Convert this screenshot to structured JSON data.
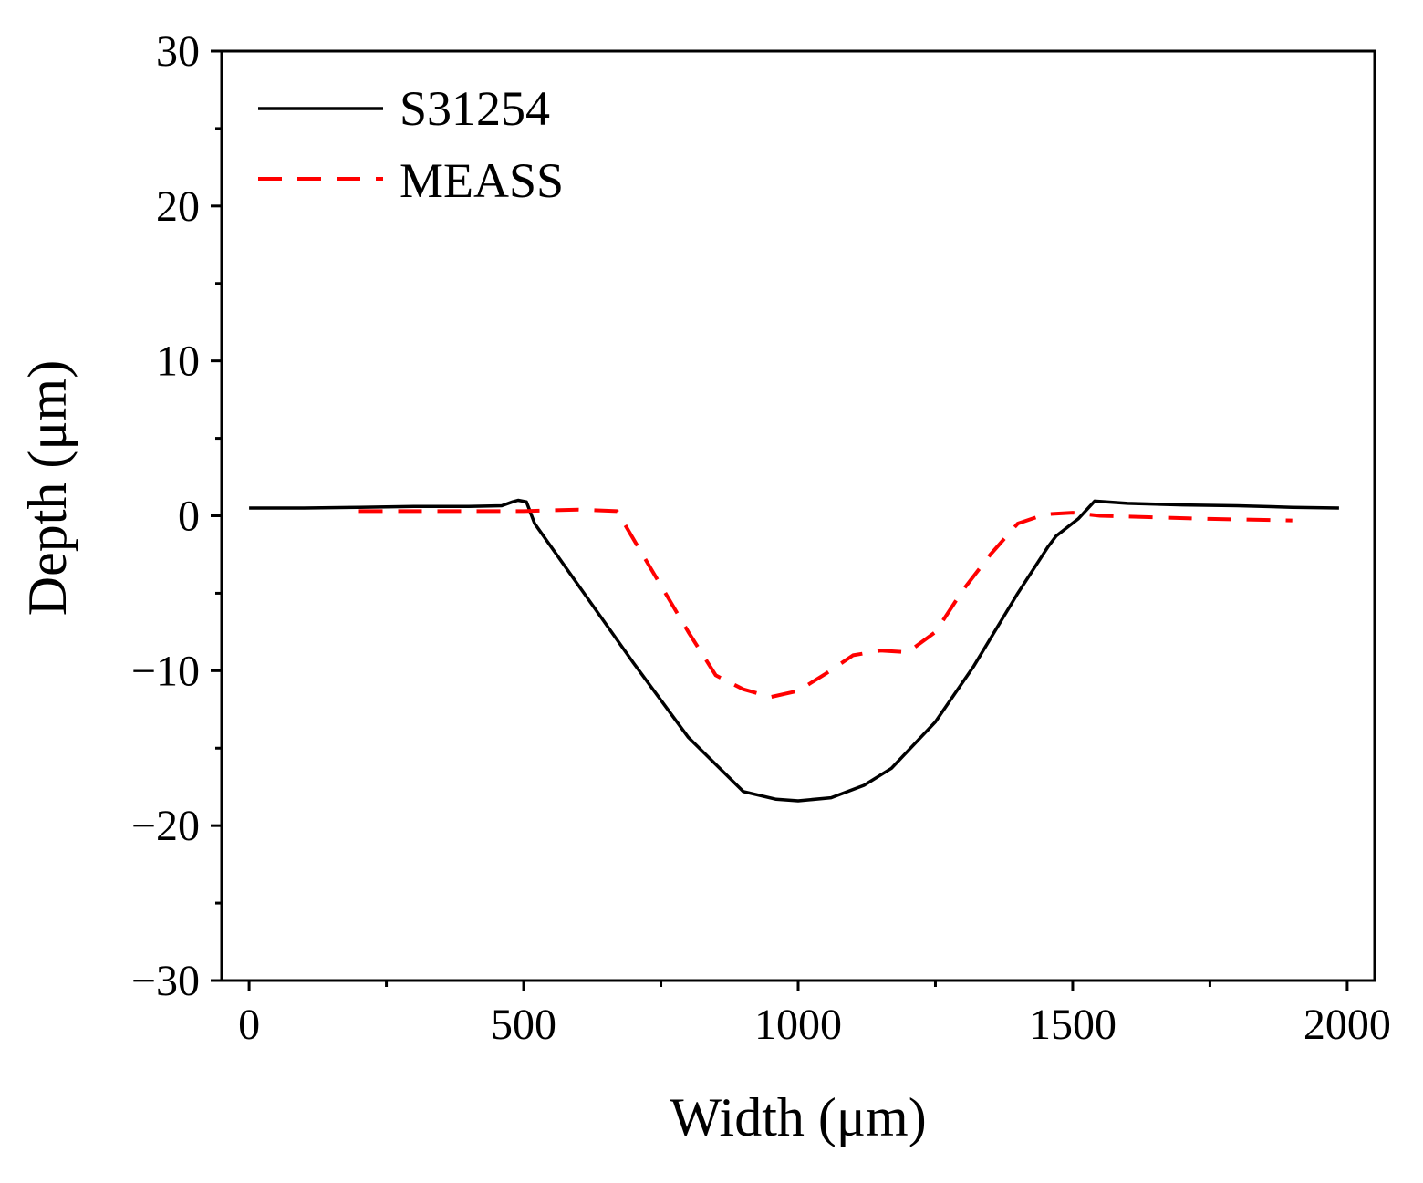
{
  "chart_data": {
    "type": "line",
    "title": "",
    "xlabel": "Width (μm)",
    "ylabel": "Depth (μm)",
    "xlim": [
      -50,
      2050
    ],
    "ylim": [
      -30,
      30
    ],
    "xticks": [
      0,
      500,
      1000,
      1500,
      2000
    ],
    "xtick_labels": [
      "0",
      "500",
      "1000",
      "1500",
      "2000"
    ],
    "xminor_ticks": [
      250,
      750,
      1250,
      1750
    ],
    "yticks": [
      -30,
      -20,
      -10,
      0,
      10,
      20,
      30
    ],
    "ytick_labels": [
      "−30",
      "−20",
      "−10",
      "0",
      "10",
      "20",
      "30"
    ],
    "yminor_ticks": [
      -25,
      -15,
      -5,
      5,
      15,
      25
    ],
    "grid": false,
    "legend_position": "top-left",
    "series": [
      {
        "name": "S31254",
        "color": "#000000",
        "style": "solid",
        "x": [
          0,
          100,
          200,
          300,
          400,
          460,
          480,
          490,
          505,
          520,
          600,
          700,
          800,
          900,
          960,
          1000,
          1060,
          1120,
          1170,
          1250,
          1320,
          1400,
          1455,
          1470,
          1510,
          1540,
          1600,
          1700,
          1800,
          1900,
          1985
        ],
        "y": [
          0.5,
          0.5,
          0.55,
          0.6,
          0.6,
          0.65,
          0.9,
          1.0,
          0.9,
          -0.5,
          -4.5,
          -9.5,
          -14.3,
          -17.8,
          -18.3,
          -18.4,
          -18.2,
          -17.4,
          -16.3,
          -13.3,
          -9.7,
          -5.0,
          -2.0,
          -1.3,
          -0.2,
          0.95,
          0.8,
          0.7,
          0.65,
          0.55,
          0.5
        ]
      },
      {
        "name": "MEASS",
        "color": "#ff0000",
        "style": "dashed",
        "x": [
          200,
          300,
          400,
          500,
          600,
          670,
          700,
          750,
          800,
          850,
          900,
          950,
          1000,
          1050,
          1100,
          1150,
          1200,
          1250,
          1300,
          1350,
          1400,
          1450,
          1500,
          1550,
          1650,
          1750,
          1900
        ],
        "y": [
          0.3,
          0.3,
          0.3,
          0.3,
          0.4,
          0.3,
          -1.5,
          -4.5,
          -7.5,
          -10.3,
          -11.2,
          -11.7,
          -11.3,
          -10.2,
          -9.0,
          -8.7,
          -8.8,
          -7.5,
          -4.8,
          -2.5,
          -0.5,
          0.1,
          0.2,
          0.0,
          -0.1,
          -0.2,
          -0.3
        ]
      }
    ]
  }
}
